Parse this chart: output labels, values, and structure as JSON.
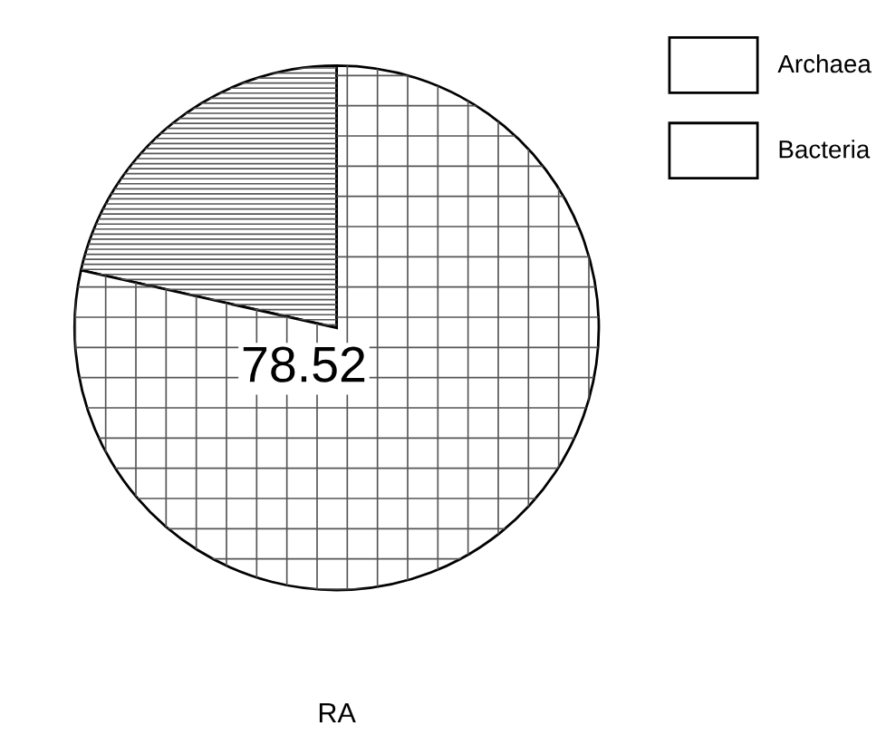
{
  "chart_data": {
    "type": "pie",
    "xlabel": "RA",
    "categories": [
      "Archaea",
      "Bacteria"
    ],
    "values": [
      21.48,
      78.52
    ],
    "colors": [
      "#ffffff",
      "#ffffff"
    ],
    "value_labels": [
      null,
      "78.52"
    ],
    "legend": "top right"
  }
}
